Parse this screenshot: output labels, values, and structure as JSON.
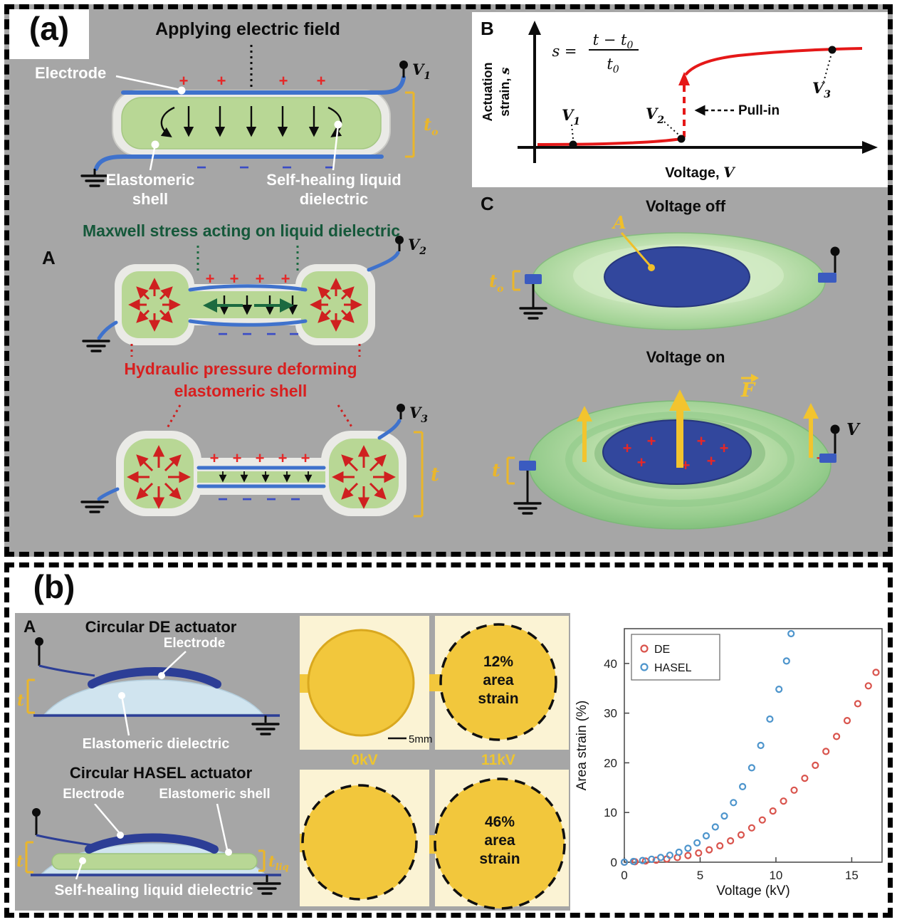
{
  "symbols": {
    "plus": "+",
    "minus": "−"
  },
  "panel_a": {
    "tag": "(a)",
    "field_title": "Applying electric field",
    "electrode": "Electrode",
    "shell_label": [
      "Elastomeric",
      "shell"
    ],
    "liquid_label": [
      "Self-healing liquid",
      "dielectric"
    ],
    "maxwell_title": "Maxwell stress acting on liquid dielectric",
    "marker_a": "A",
    "hydraulic_title": [
      "Hydraulic pressure deforming",
      "elastomeric shell"
    ],
    "v1": {
      "base": "V",
      "sub": "1"
    },
    "v2": {
      "base": "V",
      "sub": "2"
    },
    "v3": {
      "base": "V",
      "sub": "3"
    },
    "t0": {
      "base": "t",
      "sub": "o"
    },
    "t": "t"
  },
  "graph_b": {
    "tag": "B",
    "ylabel_line1": "Actuation",
    "ylabel_line2": "strain, ",
    "ylabel_var": "s",
    "xlabel": "Voltage, ",
    "xlabel_var": "V",
    "eq_lhs": "s =",
    "eq_num": "t − t",
    "eq_num_sub": "0",
    "eq_den": "t",
    "eq_den_sub": "0",
    "v1": {
      "base": "V",
      "sub": "1"
    },
    "v2": {
      "base": "V",
      "sub": "2"
    },
    "v3": {
      "base": "V",
      "sub": "3"
    },
    "pull_in": "Pull-in"
  },
  "panel_c": {
    "tag": "C",
    "voltage_off": "Voltage off",
    "voltage_on": "Voltage on",
    "area": "A",
    "force": "F",
    "v": "V",
    "t0": {
      "base": "t",
      "sub": "o"
    },
    "t": "t"
  },
  "panel_b": {
    "tag": "(b)",
    "marker_a": "A",
    "de_title": "Circular DE actuator",
    "electrode": "Electrode",
    "elastomeric_dielectric": "Elastomeric dielectric",
    "hasel_title": "Circular HASEL actuator",
    "elastomeric_shell": "Elastomeric shell",
    "liquid_dielectric": "Self-healing liquid dielectric",
    "t": "t",
    "tliq": {
      "base": "t",
      "sub": "liq"
    },
    "photos": {
      "scalebar": "5mm",
      "kv0": "0kV",
      "kv11": "11kV",
      "strain12": [
        "12%",
        "area",
        "strain"
      ],
      "strain46": [
        "46%",
        "area",
        "strain"
      ]
    }
  },
  "chart_data": [
    {
      "type": "line",
      "location": "panel B (schematic)",
      "title": "",
      "xlabel": "Voltage, V",
      "ylabel": "Actuation strain, s",
      "equation": "s = (t − t0)/t0",
      "annotations": [
        "V1",
        "V2",
        "Pull-in",
        "V3"
      ],
      "description": "Qualitative pull-in curve: strain near zero through V1 and V2, discontinuous dashed jump at pull-in, then high-strain saturating branch through V3.",
      "grid": false
    },
    {
      "type": "scatter",
      "location": "panel b (right)",
      "title": "",
      "xlabel": "Voltage (kV)",
      "ylabel": "Area strain (%)",
      "xlim": [
        0,
        17
      ],
      "ylim": [
        0,
        47
      ],
      "xticks": [
        0,
        5,
        10,
        15
      ],
      "yticks": [
        0,
        10,
        20,
        30,
        40
      ],
      "legend_position": "top-left",
      "marker": "open-circle",
      "series": [
        {
          "name": "DE",
          "color": "#d9544d",
          "points": [
            [
              0,
              0
            ],
            [
              0.7,
              0.1
            ],
            [
              1.4,
              0.25
            ],
            [
              2.1,
              0.4
            ],
            [
              2.8,
              0.65
            ],
            [
              3.5,
              0.95
            ],
            [
              4.2,
              1.35
            ],
            [
              4.9,
              1.85
            ],
            [
              5.6,
              2.5
            ],
            [
              6.3,
              3.3
            ],
            [
              7.0,
              4.3
            ],
            [
              7.7,
              5.5
            ],
            [
              8.4,
              6.9
            ],
            [
              9.1,
              8.5
            ],
            [
              9.8,
              10.3
            ],
            [
              10.5,
              12.3
            ],
            [
              11.2,
              14.5
            ],
            [
              11.9,
              16.9
            ],
            [
              12.6,
              19.5
            ],
            [
              13.3,
              22.3
            ],
            [
              14.0,
              25.3
            ],
            [
              14.7,
              28.5
            ],
            [
              15.4,
              31.9
            ],
            [
              16.1,
              35.5
            ],
            [
              16.6,
              38.2
            ]
          ]
        },
        {
          "name": "HASEL",
          "color": "#4e95cc",
          "points": [
            [
              0,
              0
            ],
            [
              0.6,
              0.15
            ],
            [
              1.2,
              0.35
            ],
            [
              1.8,
              0.6
            ],
            [
              2.4,
              0.95
            ],
            [
              3.0,
              1.4
            ],
            [
              3.6,
              2.0
            ],
            [
              4.2,
              2.8
            ],
            [
              4.8,
              3.9
            ],
            [
              5.4,
              5.3
            ],
            [
              6.0,
              7.1
            ],
            [
              6.6,
              9.3
            ],
            [
              7.2,
              12.0
            ],
            [
              7.8,
              15.2
            ],
            [
              8.4,
              19.0
            ],
            [
              9.0,
              23.5
            ],
            [
              9.6,
              28.8
            ],
            [
              10.2,
              34.8
            ],
            [
              10.7,
              40.5
            ],
            [
              11.0,
              46.0
            ]
          ]
        }
      ]
    }
  ]
}
